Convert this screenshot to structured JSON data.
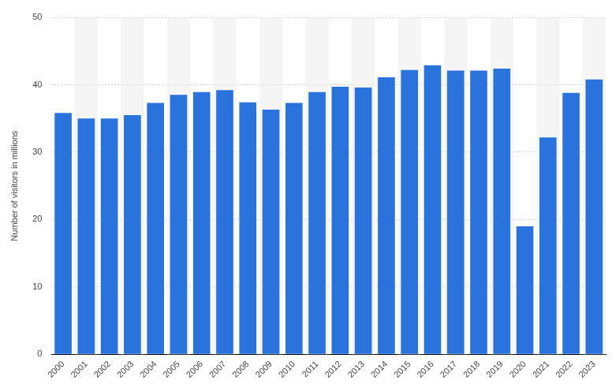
{
  "chart_data": {
    "type": "bar",
    "y_label": "Number of visitors in millions",
    "categories": [
      "2000",
      "2001",
      "2002",
      "2003",
      "2004",
      "2005",
      "2006",
      "2007",
      "2008",
      "2009",
      "2010",
      "2011",
      "2012",
      "2013",
      "2014",
      "2015",
      "2016",
      "2017",
      "2018",
      "2019",
      "2020",
      "2021",
      "2022",
      "2023"
    ],
    "values": [
      35.8,
      35.0,
      35.0,
      35.5,
      37.3,
      38.5,
      38.9,
      39.2,
      37.4,
      36.3,
      37.3,
      38.9,
      39.7,
      39.6,
      41.1,
      42.2,
      42.9,
      42.1,
      42.1,
      42.4,
      19.0,
      32.2,
      38.8,
      40.8
    ],
    "color": "#2a73dd",
    "ylim": [
      0,
      50
    ],
    "yticks": [
      0,
      10,
      20,
      30,
      40,
      50
    ],
    "grid": true
  }
}
